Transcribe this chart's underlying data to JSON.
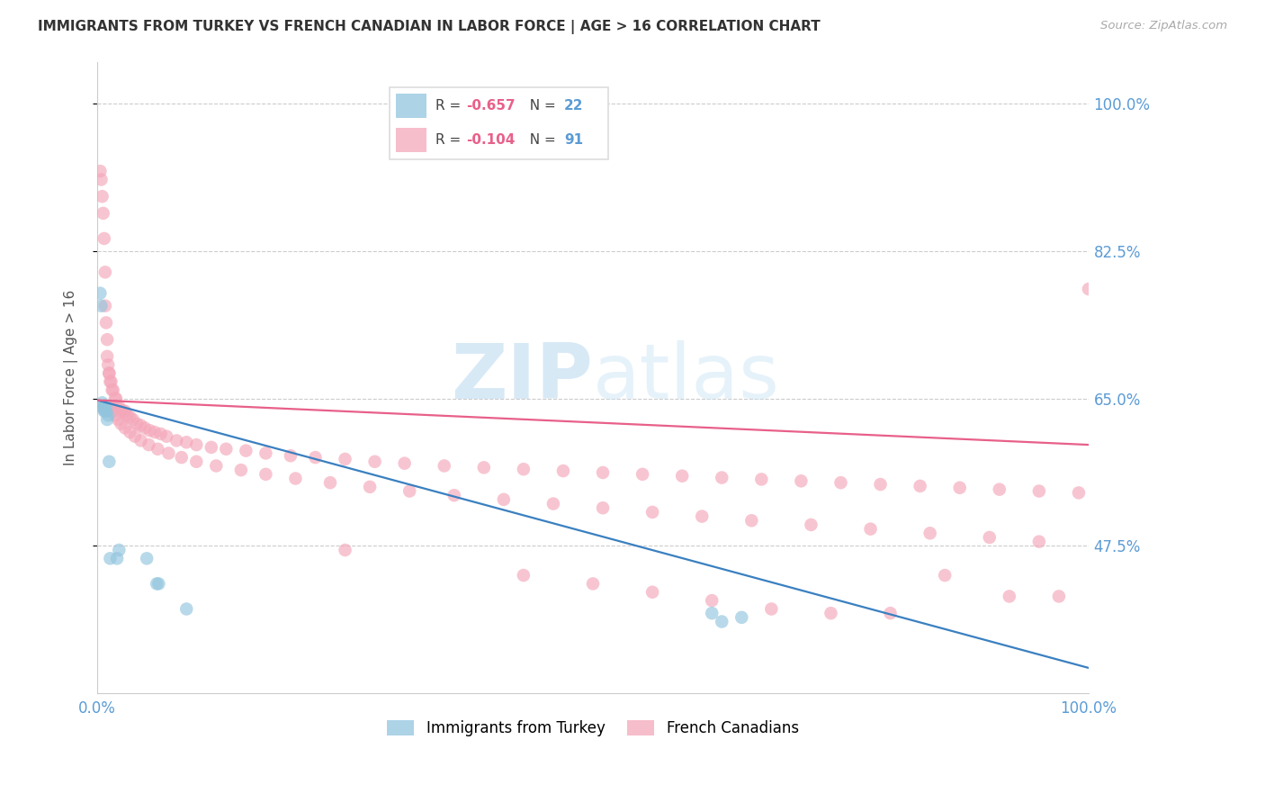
{
  "title": "IMMIGRANTS FROM TURKEY VS FRENCH CANADIAN IN LABOR FORCE | AGE > 16 CORRELATION CHART",
  "source": "Source: ZipAtlas.com",
  "ylabel": "In Labor Force | Age > 16",
  "xlim": [
    0.0,
    1.0
  ],
  "ylim": [
    0.3,
    1.05
  ],
  "yticks": [
    0.475,
    0.65,
    0.825,
    1.0
  ],
  "ytick_labels": [
    "47.5%",
    "65.0%",
    "82.5%",
    "100.0%"
  ],
  "blue_color": "#92c5de",
  "pink_color": "#f4a7b9",
  "blue_line_color": "#3a80c0",
  "pink_line_color": "#e8608a",
  "watermark": "ZIPatlas",
  "turkey_x": [
    0.003,
    0.004,
    0.005,
    0.006,
    0.007,
    0.007,
    0.008,
    0.009,
    0.009,
    0.01,
    0.011,
    0.012,
    0.013,
    0.02,
    0.022,
    0.05,
    0.06,
    0.062,
    0.09,
    0.62,
    0.63,
    0.65
  ],
  "turkey_y": [
    0.775,
    0.76,
    0.645,
    0.64,
    0.64,
    0.635,
    0.635,
    0.635,
    0.64,
    0.625,
    0.63,
    0.575,
    0.46,
    0.46,
    0.47,
    0.46,
    0.43,
    0.43,
    0.4,
    0.395,
    0.385,
    0.39
  ],
  "french_x": [
    0.003,
    0.004,
    0.005,
    0.006,
    0.007,
    0.008,
    0.008,
    0.009,
    0.01,
    0.01,
    0.011,
    0.012,
    0.012,
    0.013,
    0.014,
    0.015,
    0.016,
    0.018,
    0.019,
    0.02,
    0.022,
    0.024,
    0.026,
    0.028,
    0.03,
    0.033,
    0.036,
    0.04,
    0.044,
    0.048,
    0.053,
    0.058,
    0.064,
    0.07,
    0.08,
    0.09,
    0.1,
    0.115,
    0.13,
    0.15,
    0.17,
    0.195,
    0.22,
    0.25,
    0.28,
    0.31,
    0.35,
    0.39,
    0.43,
    0.47,
    0.51,
    0.55,
    0.59,
    0.63,
    0.67,
    0.71,
    0.75,
    0.79,
    0.83,
    0.87,
    0.91,
    0.95,
    0.99,
    0.005,
    0.007,
    0.009,
    0.01,
    0.012,
    0.013,
    0.015,
    0.018,
    0.021,
    0.024,
    0.028,
    0.033,
    0.038,
    0.044,
    0.052,
    0.061,
    0.072,
    0.085,
    0.1,
    0.12,
    0.145,
    0.17,
    0.2,
    0.235,
    0.275,
    0.315,
    0.36,
    0.41,
    0.46,
    0.51,
    0.56,
    0.61,
    0.66,
    0.72,
    0.78,
    0.84,
    0.9,
    0.95,
    0.25,
    0.43,
    0.5,
    0.56,
    0.62,
    0.68,
    0.74,
    0.8,
    0.855,
    0.92,
    0.97,
    1.0
  ],
  "french_y": [
    0.92,
    0.91,
    0.89,
    0.87,
    0.84,
    0.8,
    0.76,
    0.74,
    0.72,
    0.7,
    0.69,
    0.68,
    0.68,
    0.67,
    0.67,
    0.66,
    0.66,
    0.65,
    0.65,
    0.64,
    0.64,
    0.635,
    0.635,
    0.635,
    0.63,
    0.628,
    0.625,
    0.62,
    0.618,
    0.615,
    0.612,
    0.61,
    0.608,
    0.605,
    0.6,
    0.598,
    0.595,
    0.592,
    0.59,
    0.588,
    0.585,
    0.582,
    0.58,
    0.578,
    0.575,
    0.573,
    0.57,
    0.568,
    0.566,
    0.564,
    0.562,
    0.56,
    0.558,
    0.556,
    0.554,
    0.552,
    0.55,
    0.548,
    0.546,
    0.544,
    0.542,
    0.54,
    0.538,
    0.64,
    0.638,
    0.637,
    0.638,
    0.638,
    0.64,
    0.635,
    0.63,
    0.625,
    0.62,
    0.615,
    0.61,
    0.605,
    0.6,
    0.595,
    0.59,
    0.585,
    0.58,
    0.575,
    0.57,
    0.565,
    0.56,
    0.555,
    0.55,
    0.545,
    0.54,
    0.535,
    0.53,
    0.525,
    0.52,
    0.515,
    0.51,
    0.505,
    0.5,
    0.495,
    0.49,
    0.485,
    0.48,
    0.47,
    0.44,
    0.43,
    0.42,
    0.41,
    0.4,
    0.395,
    0.395,
    0.44,
    0.415,
    0.415,
    0.78
  ],
  "blue_line_x": [
    0.0,
    1.0
  ],
  "blue_line_y": [
    0.648,
    0.33
  ],
  "pink_line_x": [
    0.0,
    1.0
  ],
  "pink_line_y": [
    0.648,
    0.595
  ]
}
